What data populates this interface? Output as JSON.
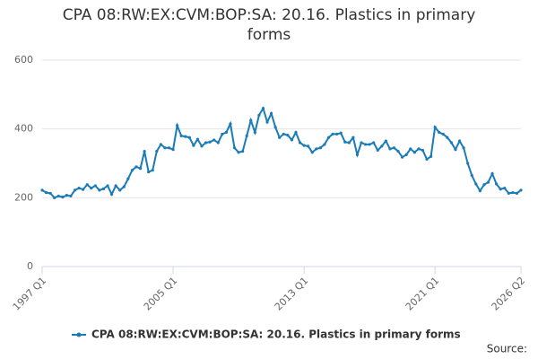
{
  "chart_data": {
    "type": "line",
    "title": "CPA 08:RW:EX:CVM:BOP:SA: 20.16. Plastics in primary forms",
    "source_label": "Source:",
    "categories": [
      "1997 Q1",
      null,
      null,
      null,
      null,
      null,
      null,
      null,
      null,
      null,
      null,
      null,
      null,
      null,
      null,
      null,
      null,
      null,
      null,
      null,
      null,
      null,
      null,
      null,
      null,
      null,
      null,
      null,
      null,
      null,
      null,
      null,
      "2005 Q1",
      null,
      null,
      null,
      null,
      null,
      null,
      null,
      null,
      null,
      null,
      null,
      null,
      null,
      null,
      null,
      null,
      null,
      null,
      null,
      null,
      null,
      null,
      null,
      null,
      null,
      null,
      null,
      null,
      null,
      null,
      null,
      "2013 Q1",
      null,
      null,
      null,
      null,
      null,
      null,
      null,
      null,
      null,
      null,
      null,
      null,
      null,
      null,
      null,
      null,
      null,
      null,
      null,
      null,
      null,
      null,
      null,
      null,
      null,
      null,
      null,
      null,
      null,
      null,
      null,
      "2021 Q1",
      null,
      null,
      null,
      null,
      null,
      null,
      null,
      null,
      null,
      null,
      null,
      null,
      null,
      null,
      null,
      null,
      null,
      null,
      null,
      null,
      "2026 Q2"
    ],
    "series": [
      {
        "name": "CPA 08:RW:EX:CVM:BOP:SA: 20.16. Plastics in primary forms",
        "color": "#1a7bb9",
        "values": [
          222,
          215,
          213,
          200,
          205,
          202,
          207,
          205,
          222,
          228,
          224,
          238,
          228,
          235,
          222,
          226,
          235,
          210,
          235,
          222,
          232,
          255,
          280,
          290,
          285,
          335,
          275,
          280,
          335,
          355,
          345,
          345,
          340,
          410,
          380,
          378,
          375,
          352,
          370,
          350,
          360,
          362,
          368,
          360,
          385,
          390,
          415,
          345,
          332,
          335,
          380,
          425,
          390,
          440,
          460,
          420,
          445,
          405,
          375,
          385,
          382,
          368,
          390,
          360,
          352,
          350,
          332,
          342,
          345,
          355,
          375,
          385,
          385,
          388,
          362,
          360,
          375,
          325,
          360,
          355,
          355,
          360,
          338,
          350,
          365,
          342,
          345,
          335,
          318,
          325,
          342,
          332,
          342,
          338,
          312,
          320,
          405,
          390,
          385,
          375,
          360,
          340,
          365,
          345,
          300,
          265,
          240,
          220,
          238,
          245,
          270,
          240,
          225,
          228,
          213,
          215,
          213,
          222
        ]
      }
    ],
    "ylim": [
      0,
      600
    ],
    "yticks": [
      0,
      200,
      400,
      600
    ],
    "grid": true,
    "legend": "bottom"
  }
}
